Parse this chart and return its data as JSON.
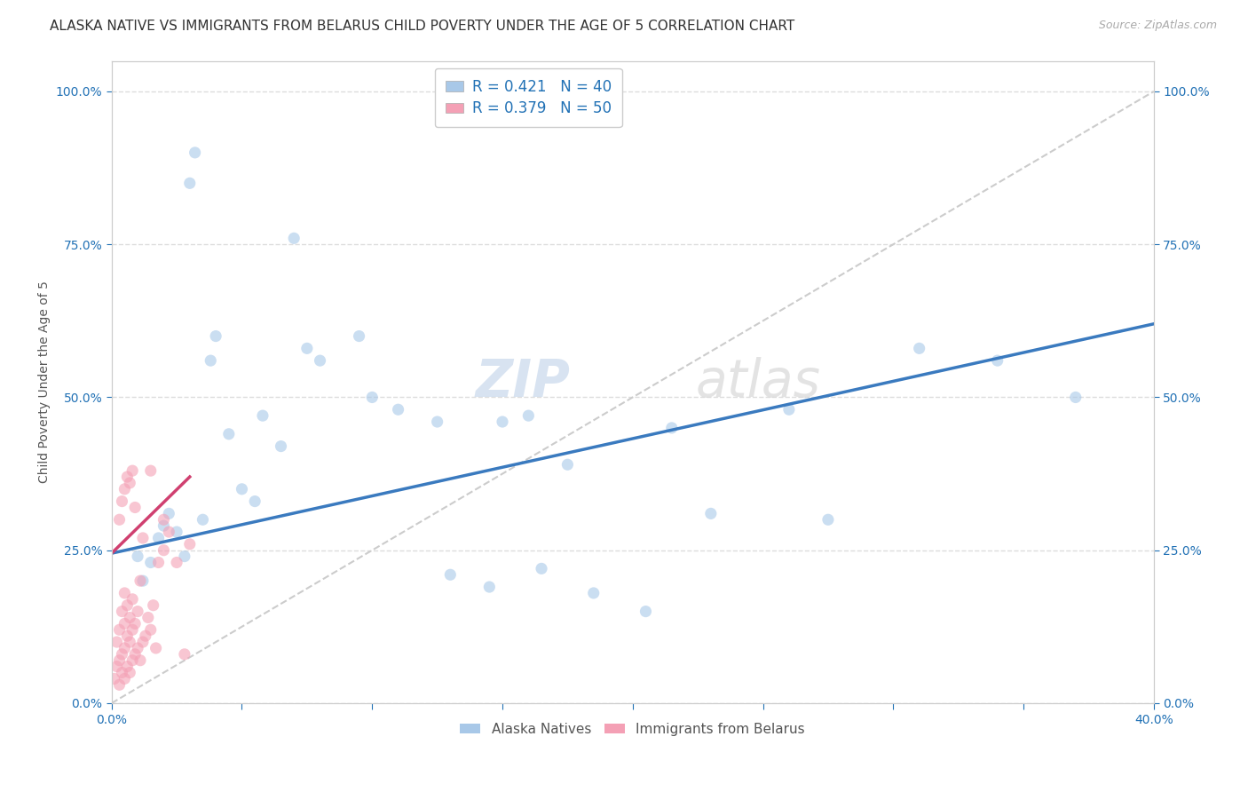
{
  "title": "ALASKA NATIVE VS IMMIGRANTS FROM BELARUS CHILD POVERTY UNDER THE AGE OF 5 CORRELATION CHART",
  "source": "Source: ZipAtlas.com",
  "ylabel_label": "Child Poverty Under the Age of 5",
  "xlim": [
    0.0,
    0.4
  ],
  "ylim": [
    0.0,
    1.05
  ],
  "xticks": [
    0.0,
    0.05,
    0.1,
    0.15,
    0.2,
    0.25,
    0.3,
    0.35,
    0.4
  ],
  "xtick_labels_show": [
    "0.0%",
    "",
    "",
    "",
    "",
    "",
    "",
    "",
    "40.0%"
  ],
  "yticks": [
    0.0,
    0.25,
    0.5,
    0.75,
    1.0
  ],
  "ytick_labels": [
    "0.0%",
    "25.0%",
    "50.0%",
    "75.0%",
    "100.0%"
  ],
  "legend1_label": "Alaska Natives",
  "legend2_label": "Immigrants from Belarus",
  "R1": 0.421,
  "N1": 40,
  "R2": 0.379,
  "N2": 50,
  "color_blue": "#a8c8e8",
  "color_pink": "#f4a0b5",
  "color_blue_line": "#3a7abf",
  "color_pink_line": "#d04070",
  "color_diag": "#cccccc",
  "scatter_alpha": 0.6,
  "scatter_size": 90,
  "alaska_x": [
    0.01,
    0.012,
    0.015,
    0.018,
    0.02,
    0.022,
    0.025,
    0.028,
    0.03,
    0.032,
    0.035,
    0.038,
    0.04,
    0.045,
    0.05,
    0.055,
    0.058,
    0.065,
    0.07,
    0.075,
    0.08,
    0.095,
    0.1,
    0.11,
    0.125,
    0.13,
    0.145,
    0.15,
    0.16,
    0.165,
    0.175,
    0.185,
    0.205,
    0.215,
    0.23,
    0.26,
    0.275,
    0.31,
    0.34,
    0.37
  ],
  "alaska_y": [
    0.24,
    0.2,
    0.23,
    0.27,
    0.29,
    0.31,
    0.28,
    0.24,
    0.85,
    0.9,
    0.3,
    0.56,
    0.6,
    0.44,
    0.35,
    0.33,
    0.47,
    0.42,
    0.76,
    0.58,
    0.56,
    0.6,
    0.5,
    0.48,
    0.46,
    0.21,
    0.19,
    0.46,
    0.47,
    0.22,
    0.39,
    0.18,
    0.15,
    0.45,
    0.31,
    0.48,
    0.3,
    0.58,
    0.56,
    0.5
  ],
  "belarus_x": [
    0.001,
    0.002,
    0.002,
    0.003,
    0.003,
    0.003,
    0.004,
    0.004,
    0.004,
    0.005,
    0.005,
    0.005,
    0.005,
    0.006,
    0.006,
    0.006,
    0.007,
    0.007,
    0.007,
    0.008,
    0.008,
    0.008,
    0.009,
    0.009,
    0.01,
    0.01,
    0.011,
    0.011,
    0.012,
    0.013,
    0.014,
    0.015,
    0.016,
    0.017,
    0.018,
    0.02,
    0.022,
    0.025,
    0.028,
    0.03,
    0.003,
    0.004,
    0.005,
    0.006,
    0.007,
    0.008,
    0.009,
    0.012,
    0.015,
    0.02
  ],
  "belarus_y": [
    0.04,
    0.06,
    0.1,
    0.03,
    0.07,
    0.12,
    0.05,
    0.08,
    0.15,
    0.04,
    0.09,
    0.13,
    0.18,
    0.06,
    0.11,
    0.16,
    0.05,
    0.1,
    0.14,
    0.07,
    0.12,
    0.17,
    0.08,
    0.13,
    0.09,
    0.15,
    0.07,
    0.2,
    0.1,
    0.11,
    0.14,
    0.12,
    0.16,
    0.09,
    0.23,
    0.25,
    0.28,
    0.23,
    0.08,
    0.26,
    0.3,
    0.33,
    0.35,
    0.37,
    0.36,
    0.38,
    0.32,
    0.27,
    0.38,
    0.3
  ],
  "blue_line_x": [
    0.0,
    0.4
  ],
  "blue_line_y": [
    0.245,
    0.62
  ],
  "pink_line_x": [
    0.0,
    0.03
  ],
  "pink_line_y": [
    0.245,
    0.37
  ],
  "diag_line_x": [
    0.0,
    0.4
  ],
  "diag_line_y": [
    0.0,
    1.0
  ],
  "background_color": "#ffffff",
  "grid_color": "#dddddd",
  "title_fontsize": 11,
  "axis_label_fontsize": 10,
  "tick_fontsize": 10,
  "legend_fontsize": 12
}
